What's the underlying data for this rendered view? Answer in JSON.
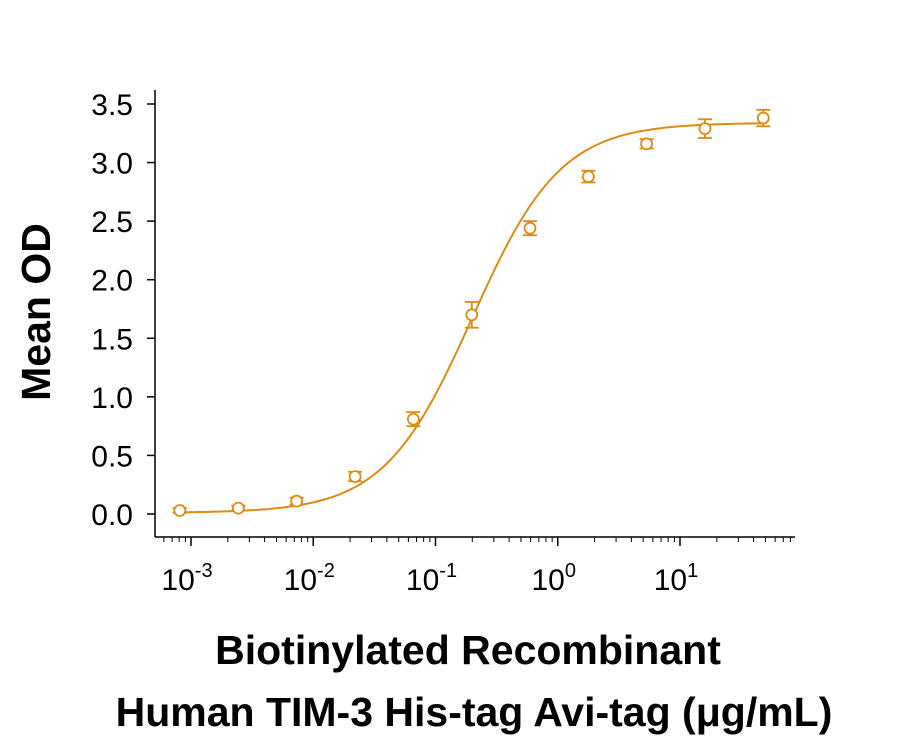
{
  "chart_data": {
    "type": "scatter",
    "title": "",
    "ylabel": "Mean OD",
    "xlabel_lines": [
      "Biotinylated Recombinant",
      "Human TIM-3 His-tag Avi-tag (μg/mL)"
    ],
    "x_scale": "log",
    "xlim": [
      0.0006,
      80
    ],
    "ylim": [
      -0.1,
      3.6
    ],
    "y_ticks": [
      {
        "value": 0.0,
        "label": "0.0"
      },
      {
        "value": 0.5,
        "label": "0.5"
      },
      {
        "value": 1.0,
        "label": "1.0"
      },
      {
        "value": 1.5,
        "label": "1.5"
      },
      {
        "value": 2.0,
        "label": "2.0"
      },
      {
        "value": 2.5,
        "label": "2.5"
      },
      {
        "value": 3.0,
        "label": "3.0"
      },
      {
        "value": 3.5,
        "label": "3.5"
      }
    ],
    "x_ticks": [
      {
        "value": 0.001,
        "base": "10",
        "exp": "-3"
      },
      {
        "value": 0.01,
        "base": "10",
        "exp": "-2"
      },
      {
        "value": 0.1,
        "base": "10",
        "exp": "-1"
      },
      {
        "value": 1,
        "base": "10",
        "exp": "0"
      },
      {
        "value": 10,
        "base": "10",
        "exp": "1"
      }
    ],
    "color": "#E08A12",
    "grid": false,
    "series": [
      {
        "points": [
          {
            "x": 0.00081,
            "y": 0.03,
            "err": 0.02
          },
          {
            "x": 0.00244,
            "y": 0.05,
            "err": 0.02
          },
          {
            "x": 0.00732,
            "y": 0.11,
            "err": 0.03
          },
          {
            "x": 0.022,
            "y": 0.32,
            "err": 0.04
          },
          {
            "x": 0.0659,
            "y": 0.81,
            "err": 0.06
          },
          {
            "x": 0.198,
            "y": 1.7,
            "err": 0.11
          },
          {
            "x": 0.593,
            "y": 2.44,
            "err": 0.06
          },
          {
            "x": 1.78,
            "y": 2.88,
            "err": 0.05
          },
          {
            "x": 5.33,
            "y": 3.16,
            "err": 0.04
          },
          {
            "x": 16.0,
            "y": 3.29,
            "err": 0.08
          },
          {
            "x": 48.0,
            "y": 3.38,
            "err": 0.07
          }
        ]
      }
    ],
    "fit_curve": {
      "model": "4PL",
      "bottom": 0.01,
      "top": 3.34,
      "ec50": 0.2,
      "hill": 1.2
    }
  }
}
